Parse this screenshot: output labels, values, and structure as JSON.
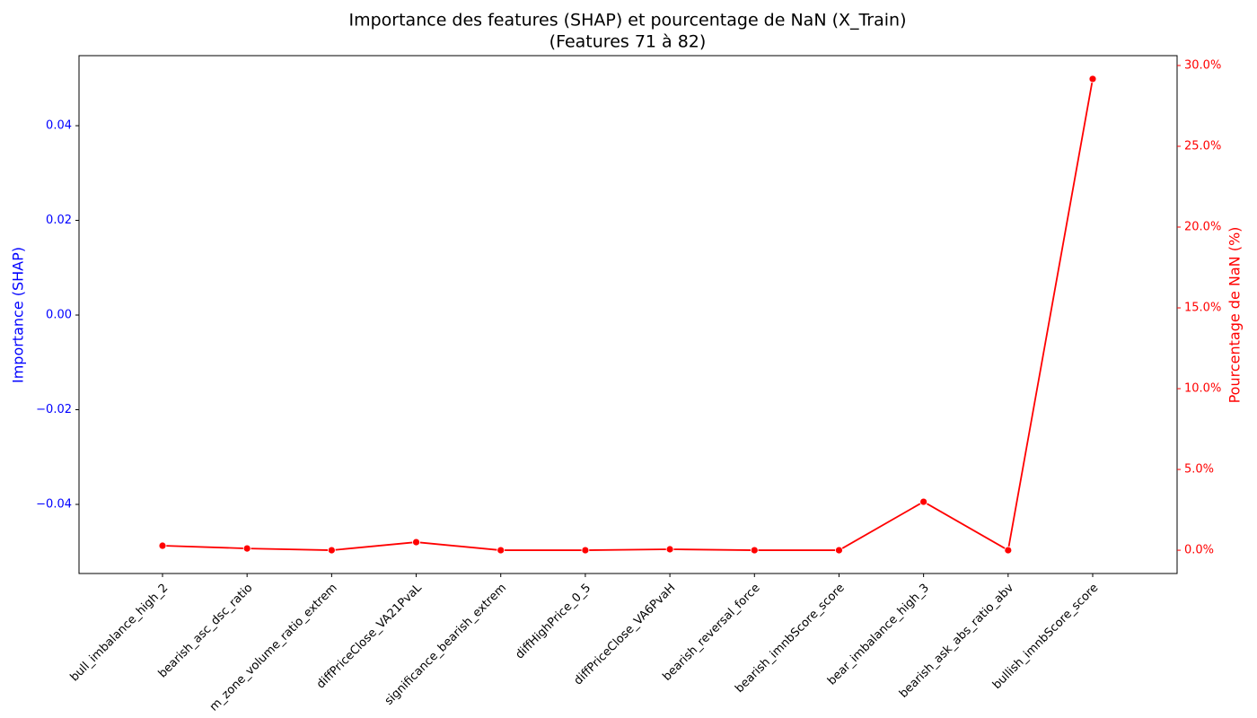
{
  "chart_data": {
    "type": "line",
    "title": "Importance des features (SHAP) et pourcentage de NaN (X_Train)",
    "subtitle": "(Features 71 à 82)",
    "ylabel": "Importance (SHAP)",
    "y2label": "Pourcentage de NaN (%)",
    "ylabel_color": "blue",
    "y2label_color": "red",
    "categories": [
      "bull_imbalance_high_2",
      "bearish_asc_dsc_ratio",
      "m_zone_volume_ratio_extrem",
      "diffPriceClose_VA21PvaL",
      "significance_bearish_extrem",
      "diffHighPrice_0_5",
      "diffPriceClose_VA6PvaH",
      "bearish_reversal_force",
      "bearish_imnbScore_score",
      "bear_imbalance_high_3",
      "bearish_ask_abs_ratio_abv",
      "bullish_imnbScore_score"
    ],
    "ylim": [
      -0.0546,
      0.0548
    ],
    "yticks": [
      {
        "value": -0.04,
        "label": "−0.04"
      },
      {
        "value": -0.02,
        "label": "−0.02"
      },
      {
        "value": 0,
        "label": "0.00"
      },
      {
        "value": 0.02,
        "label": "0.02"
      },
      {
        "value": 0.04,
        "label": "0.04"
      }
    ],
    "y2lim": [
      -1.44,
      30.61
    ],
    "y2ticks": [
      {
        "value": 0,
        "label": "0.0%"
      },
      {
        "value": 5,
        "label": "5.0%"
      },
      {
        "value": 10,
        "label": "10.0%"
      },
      {
        "value": 15,
        "label": "15.0%"
      },
      {
        "value": 20,
        "label": "20.0%"
      },
      {
        "value": 25,
        "label": "25.0%"
      },
      {
        "value": 30,
        "label": "30.0%"
      }
    ],
    "series": [
      {
        "color": "red",
        "axis": "y2",
        "values": [
          0.28,
          0.11,
          0,
          0.5,
          0,
          0,
          0.06,
          0,
          0,
          3.0,
          0,
          29.17
        ]
      }
    ],
    "grid": false
  }
}
